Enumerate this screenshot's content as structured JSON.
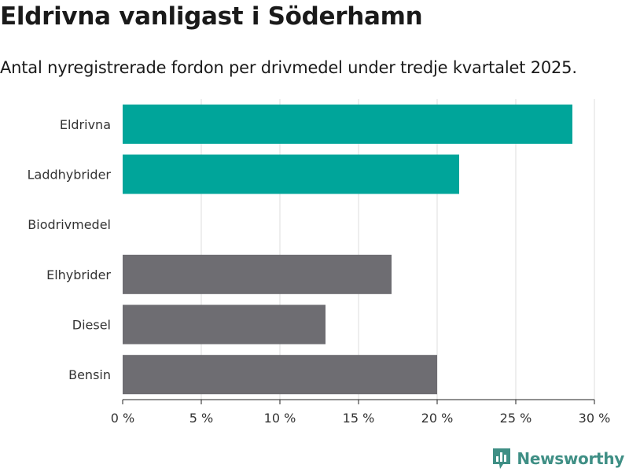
{
  "header": {
    "title": "Eldrivna vanligast i Söderhamn",
    "subtitle": "Antal nyregistrerade fordon per drivmedel under tredje kvartalet 2025."
  },
  "brand": {
    "name": "Newsworthy",
    "logo_icon": "bar-chart-logo-icon",
    "color": "#3f8f85"
  },
  "colors": {
    "highlight": "#00a59a",
    "default": "#6e6d72",
    "grid": "#dddddd",
    "axis": "#222222"
  },
  "chart_data": {
    "type": "bar",
    "orientation": "horizontal",
    "title": "Eldrivna vanligast i Söderhamn",
    "subtitle": "Antal nyregistrerade fordon per drivmedel under tredje kvartalet 2025.",
    "xlabel": "",
    "ylabel": "",
    "xlim": [
      0,
      30
    ],
    "xticks": [
      0,
      5,
      10,
      15,
      20,
      25,
      30
    ],
    "xtick_labels": [
      "0 %",
      "5 %",
      "10 %",
      "15 %",
      "20 %",
      "25 %",
      "30 %"
    ],
    "grid": true,
    "categories": [
      "Eldrivna",
      "Laddhybrider",
      "Biodrivmedel",
      "Elhybrider",
      "Diesel",
      "Bensin"
    ],
    "values": [
      28.6,
      21.4,
      0,
      17.1,
      12.9,
      20.0
    ],
    "bar_colors": [
      "#00a59a",
      "#00a59a",
      "#6e6d72",
      "#6e6d72",
      "#6e6d72",
      "#6e6d72"
    ]
  }
}
